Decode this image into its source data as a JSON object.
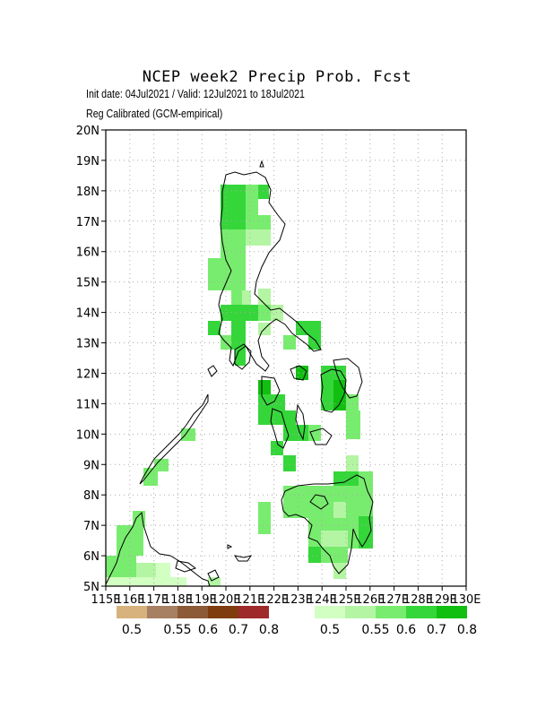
{
  "title": "NCEP week2 Precip Prob. Fcst",
  "subtitle": "Init date: 04Jul2021 / Valid: 12Jul2021 to 18Jul2021",
  "subtitle2": "Reg Calibrated (GCM-empirical)",
  "map": {
    "lon_range": [
      115,
      130
    ],
    "lat_range": [
      5,
      20
    ],
    "lat_ticks": [
      "5N",
      "6N",
      "7N",
      "8N",
      "9N",
      "10N",
      "11N",
      "12N",
      "13N",
      "14N",
      "15N",
      "16N",
      "17N",
      "18N",
      "19N",
      "20N"
    ],
    "lon_ticks": [
      "115E",
      "116E",
      "117E",
      "118E",
      "119E",
      "120E",
      "121E",
      "122E",
      "123E",
      "124E",
      "125E",
      "126E",
      "127E",
      "128E",
      "129E",
      "130E"
    ],
    "grid": "dotted"
  },
  "legend": {
    "dry": {
      "colors": [
        "#d8b27c",
        "#a77f62",
        "#8c5a37",
        "#7f3d0f",
        "#9e2a2c"
      ],
      "labels": [
        "0.5",
        "0.55",
        "0.6",
        "0.7",
        "0.8"
      ]
    },
    "wet": {
      "colors": [
        "#d2ffc2",
        "#b4f5a4",
        "#78ec6e",
        "#35d63a",
        "#11bf11"
      ],
      "labels": [
        "0.5",
        "0.55",
        "0.6",
        "0.7",
        "0.8"
      ]
    }
  }
}
